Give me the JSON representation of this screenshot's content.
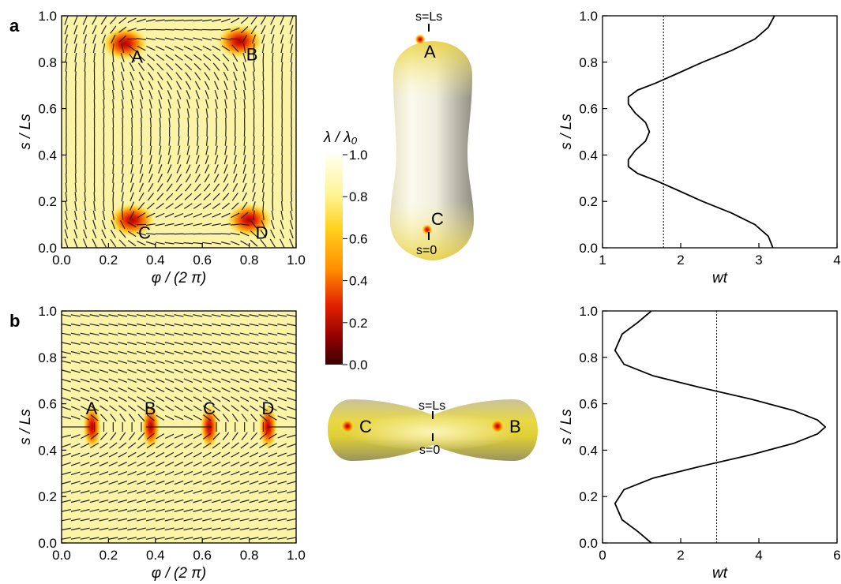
{
  "panels": [
    {
      "letter": "a"
    },
    {
      "letter": "b"
    }
  ],
  "colorbar": {
    "label": "λ / λ₀",
    "ticks": [
      "1.0",
      "0.8",
      "0.6",
      "0.4",
      "0.2",
      "0.0"
    ],
    "colors": [
      "#ffffee",
      "#fff59a",
      "#ffd21e",
      "#ff8c00",
      "#e02000",
      "#8b0000",
      "#3a0000"
    ]
  },
  "chart_data": [
    {
      "type": "heatmap",
      "panel": "a",
      "xlabel": "φ / (2 π)",
      "ylabel": "s / Ls",
      "xlim": [
        0,
        1
      ],
      "ylim": [
        0,
        1
      ],
      "xticks": [
        "0.0",
        "0.2",
        "0.4",
        "0.6",
        "0.8",
        "1.0"
      ],
      "yticks": [
        "0.0",
        "0.2",
        "0.4",
        "0.6",
        "0.8",
        "1.0"
      ],
      "defects": [
        {
          "name": "A",
          "phi": 0.27,
          "s": 0.88
        },
        {
          "name": "B",
          "phi": 0.76,
          "s": 0.89
        },
        {
          "name": "C",
          "phi": 0.3,
          "s": 0.12
        },
        {
          "name": "D",
          "phi": 0.8,
          "s": 0.12
        }
      ]
    },
    {
      "type": "heatmap",
      "panel": "b",
      "xlabel": "φ / (2 π)",
      "ylabel": "s / Ls",
      "xlim": [
        0,
        1
      ],
      "ylim": [
        0,
        1
      ],
      "xticks": [
        "0.0",
        "0.2",
        "0.4",
        "0.6",
        "0.8",
        "1.0"
      ],
      "yticks": [
        "0.0",
        "0.2",
        "0.4",
        "0.6",
        "0.8",
        "1.0"
      ],
      "defects": [
        {
          "name": "A",
          "phi": 0.13,
          "s": 0.5
        },
        {
          "name": "B",
          "phi": 0.38,
          "s": 0.5
        },
        {
          "name": "C",
          "phi": 0.63,
          "s": 0.5
        },
        {
          "name": "D",
          "phi": 0.88,
          "s": 0.5
        }
      ]
    },
    {
      "type": "line",
      "panel": "a",
      "xlabel": "wt",
      "ylabel": "s / Ls",
      "xlim": [
        1,
        4
      ],
      "ylim": [
        0,
        1
      ],
      "xticks": [
        "1",
        "2",
        "3",
        "4"
      ],
      "yticks": [
        "0.0",
        "0.2",
        "0.4",
        "0.6",
        "0.8",
        "1.0"
      ],
      "x": [
        3.18,
        3.12,
        2.95,
        2.65,
        2.28,
        1.95,
        1.68,
        1.45,
        1.33,
        1.33,
        1.42,
        1.55,
        1.6,
        1.55,
        1.42,
        1.33,
        1.33,
        1.45,
        1.68,
        1.95,
        2.28,
        2.65,
        2.95,
        3.12,
        3.2
      ],
      "y": [
        0.0,
        0.05,
        0.1,
        0.15,
        0.2,
        0.25,
        0.29,
        0.32,
        0.35,
        0.38,
        0.42,
        0.46,
        0.5,
        0.54,
        0.58,
        0.62,
        0.65,
        0.68,
        0.71,
        0.75,
        0.8,
        0.85,
        0.9,
        0.95,
        1.0
      ],
      "reference_x": 1.78
    },
    {
      "type": "line",
      "panel": "b",
      "xlabel": "wt",
      "ylabel": "s / Ls",
      "xlim": [
        0,
        6
      ],
      "ylim": [
        0,
        1
      ],
      "xticks": [
        "0",
        "2",
        "4",
        "6"
      ],
      "yticks": [
        "0.0",
        "0.2",
        "0.4",
        "0.6",
        "0.8",
        "1.0"
      ],
      "x": [
        1.25,
        0.9,
        0.5,
        0.32,
        0.55,
        1.3,
        2.5,
        3.8,
        4.9,
        5.5,
        5.7,
        5.5,
        4.9,
        3.8,
        2.5,
        1.3,
        0.55,
        0.32,
        0.5,
        0.9,
        1.25
      ],
      "y": [
        0.0,
        0.05,
        0.1,
        0.17,
        0.23,
        0.28,
        0.33,
        0.38,
        0.43,
        0.47,
        0.5,
        0.53,
        0.57,
        0.62,
        0.67,
        0.72,
        0.77,
        0.83,
        0.9,
        0.95,
        1.0
      ],
      "reference_x": 2.92
    }
  ],
  "shapes": [
    {
      "panel": "a",
      "top_label": "s=Ls",
      "bottom_label": "s=0",
      "defects": [
        "A",
        "C"
      ]
    },
    {
      "panel": "b",
      "top_label": "s=Ls",
      "bottom_label": "s=0",
      "defects": [
        "C",
        "B"
      ]
    }
  ]
}
